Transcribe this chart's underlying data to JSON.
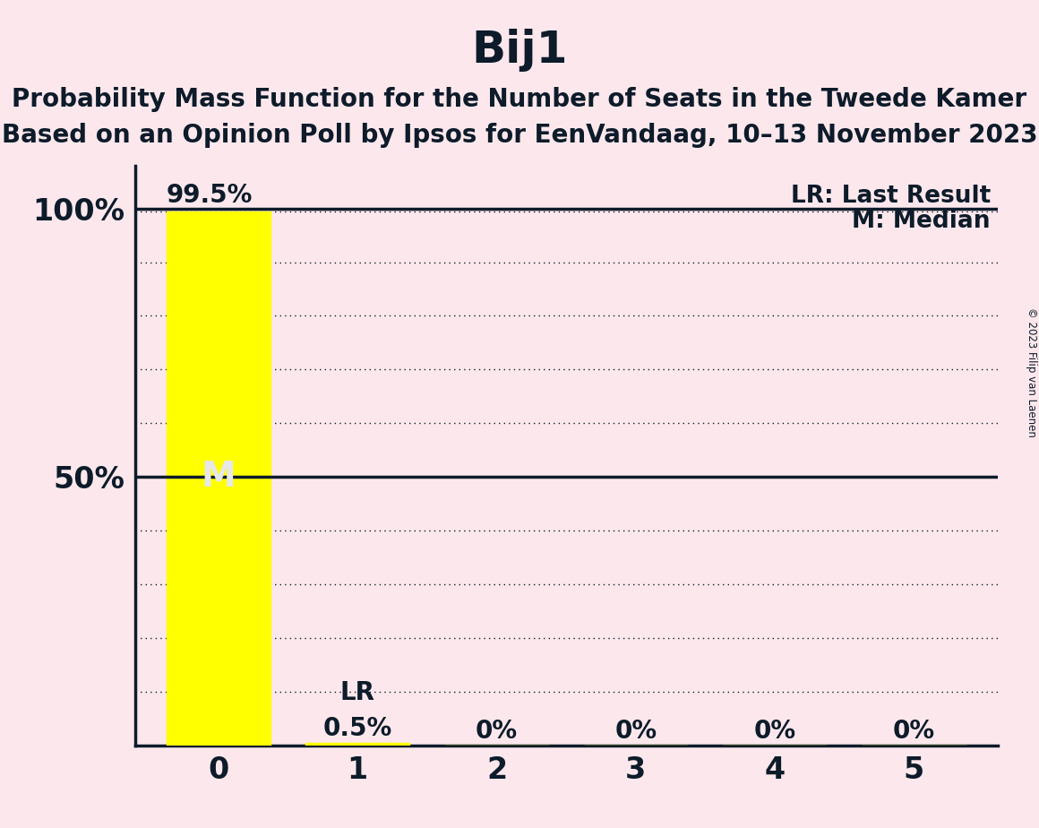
{
  "title": "Bij1",
  "subtitle1": "Probability Mass Function for the Number of Seats in the Tweede Kamer",
  "subtitle2": "Based on an Opinion Poll by Ipsos for EenVandaag, 10–13 November 2023",
  "copyright": "© 2023 Filip van Laenen",
  "seats": [
    0,
    1,
    2,
    3,
    4,
    5
  ],
  "probabilities": [
    0.995,
    0.005,
    0.0,
    0.0,
    0.0,
    0.0
  ],
  "bar_labels": [
    "99.5%",
    "0.5%",
    "0%",
    "0%",
    "0%",
    "0%"
  ],
  "bar_color": "#ffff00",
  "background_color": "#fce8ec",
  "text_color": "#0d1b2a",
  "median_seat": 0,
  "last_result_seat": 1,
  "legend_lr": "LR: Last Result",
  "legend_m": "M: Median",
  "ylim": [
    0,
    1.05
  ],
  "title_fontsize": 36,
  "subtitle_fontsize": 20,
  "axis_label_fontsize": 24,
  "bar_label_fontsize": 20,
  "legend_fontsize": 19,
  "median_label_color": "#e8e8e8",
  "grid_color": "#111122",
  "dotted_levels": [
    0.1,
    0.2,
    0.3,
    0.4,
    0.6,
    0.7,
    0.8,
    0.9,
    0.995
  ],
  "solid_levels": [
    0.5,
    1.0
  ]
}
